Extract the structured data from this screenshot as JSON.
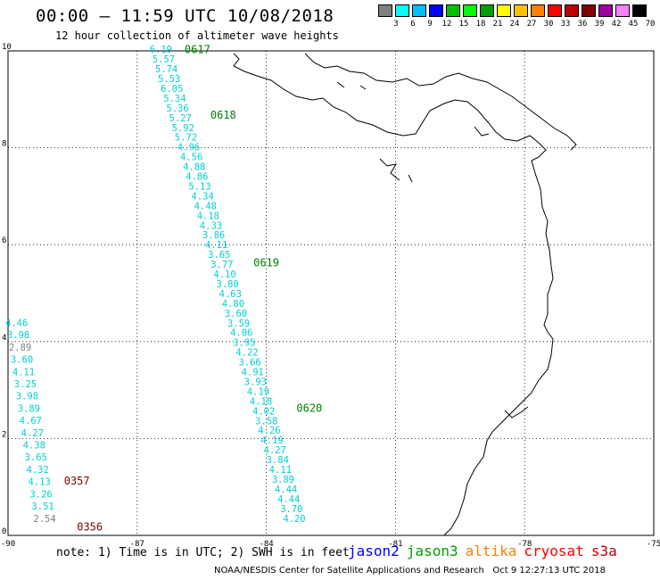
{
  "header": {
    "title": "00:00 – 11:59 UTC 10/08/2018",
    "subtitle": "12 hour collection of altimeter wave heights"
  },
  "legend": {
    "labels": [
      "3",
      "6",
      "9",
      "12",
      "15",
      "18",
      "21",
      "24",
      "27",
      "30",
      "33",
      "36",
      "39",
      "42",
      "45",
      "70"
    ],
    "unit": "(ft)",
    "colors": [
      "#808080",
      "#00ffff",
      "#00bfff",
      "#0000ff",
      "#00c000",
      "#00ff00",
      "#00a000",
      "#ffff00",
      "#ffc000",
      "#ff8000",
      "#ff0000",
      "#c00000",
      "#800000",
      "#a000a0",
      "#ff80ff",
      "#000000"
    ]
  },
  "axes": {
    "x_ticks": [
      "-90",
      "-87",
      "-84",
      "-81",
      "-78",
      "-75"
    ],
    "y_ticks": [
      "0",
      "2",
      "4",
      "6",
      "8",
      "10"
    ]
  },
  "tracks": [
    {
      "sat": "jason3",
      "color": "#00d0d0",
      "lon_start": -86.45,
      "lat_start": 9.96,
      "lon_end": -83.35,
      "lat_end": 0.28,
      "values": [
        "6.19",
        "5.57",
        "5.74",
        "5.53",
        "6.05",
        "5.34",
        "5.36",
        "5.27",
        "5.92",
        "5.72",
        "4.96",
        "4.56",
        "4.88",
        "4.86",
        "5.13",
        "4.34",
        "4.48",
        "4.18",
        "4.33",
        "3.86",
        "4.11",
        "3.65",
        "3.77",
        "4.10",
        "3.80",
        "4.63",
        "4.80",
        "3.60",
        "3.59",
        "4.06",
        "3.95",
        "4.22",
        "3.66",
        "4.91",
        "3.93",
        "4.19",
        "4.18",
        "4.02",
        "3.58",
        "4.26",
        "4.19",
        "4.27",
        "3.84",
        "4.11",
        "3.89",
        "4.44",
        "4.44",
        "3.70",
        "4.20"
      ]
    },
    {
      "sat": "cryosat",
      "color": "#00d0d0",
      "lon_start": -89.8,
      "lat_start": 4.32,
      "lon_end": -89.15,
      "lat_end": 0.28,
      "values": [
        "4.46",
        "3.98",
        "2.89",
        "3.60",
        "4.11",
        "3.25",
        "3.98",
        "3.89",
        "4.67",
        "4.27",
        "4.38",
        "3.65",
        "4.32",
        "4.13",
        "3.26",
        "3.51",
        "2.54"
      ],
      "gray_values": [
        "2.89",
        "2.54"
      ]
    }
  ],
  "time_labels": [
    {
      "text": "0617",
      "sat": "jason3",
      "lon": -85.9,
      "lat": 9.95
    },
    {
      "text": "0618",
      "sat": "jason3",
      "lon": -85.3,
      "lat": 8.6
    },
    {
      "text": "0619",
      "sat": "jason3",
      "lon": -84.3,
      "lat": 5.55
    },
    {
      "text": "0620",
      "sat": "jason3",
      "lon": -83.3,
      "lat": 2.55
    },
    {
      "text": "0357",
      "sat": "cryosat",
      "lon": -88.7,
      "lat": 1.05
    },
    {
      "text": "0356",
      "sat": "cryosat",
      "lon": -88.4,
      "lat": 0.1
    }
  ],
  "footer": {
    "note": "note: 1) Time is in UTC; 2) SWH is in feet",
    "satellites": [
      {
        "name": "jason2",
        "color": "#0000ff"
      },
      {
        "name": "jason3",
        "color": "#00a000"
      },
      {
        "name": "altika",
        "color": "#ff8000"
      },
      {
        "name": "cryosat",
        "color": "#ff0000"
      },
      {
        "name": "s3a",
        "color": "#c00000"
      }
    ],
    "credit": "NOAA/NESDIS Center for Satellite Applications and Research",
    "timestamp": "Oct  9 12:27:13 UTC 2018"
  }
}
